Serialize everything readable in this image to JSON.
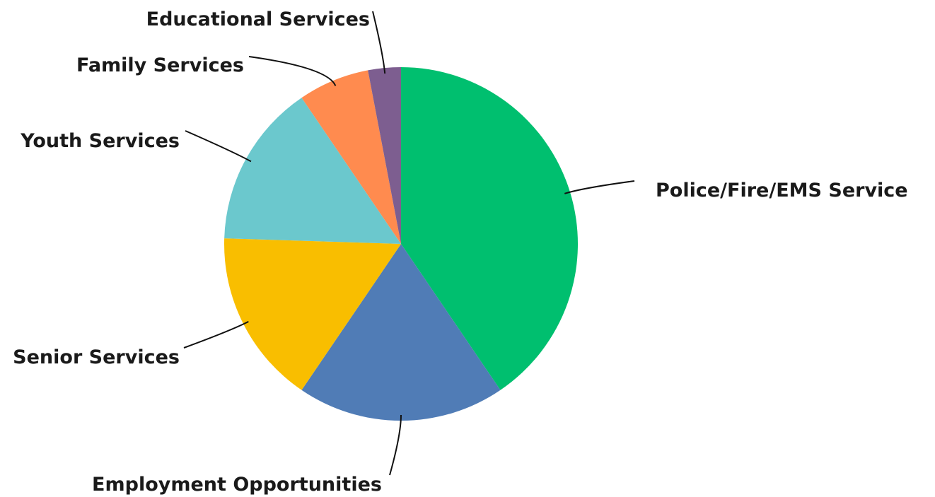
{
  "chart_data": {
    "type": "pie",
    "title": "",
    "start": "12 o'clock",
    "direction": "clockwise",
    "legend": "none",
    "slices": [
      {
        "label": "Police/Fire/EMS Service",
        "value": 40.5,
        "color": "#00BF6F"
      },
      {
        "label": "Employment Opportunities",
        "value": 19.0,
        "color": "#507CB6"
      },
      {
        "label": "Senior Services",
        "value": 16.0,
        "color": "#F9BE00"
      },
      {
        "label": "Youth Services",
        "value": 15.0,
        "color": "#6BC8CD"
      },
      {
        "label": "Family Services",
        "value": 6.5,
        "color": "#FF8B4F"
      },
      {
        "label": "Educational Services",
        "value": 3.0,
        "color": "#7D5E90"
      }
    ]
  }
}
